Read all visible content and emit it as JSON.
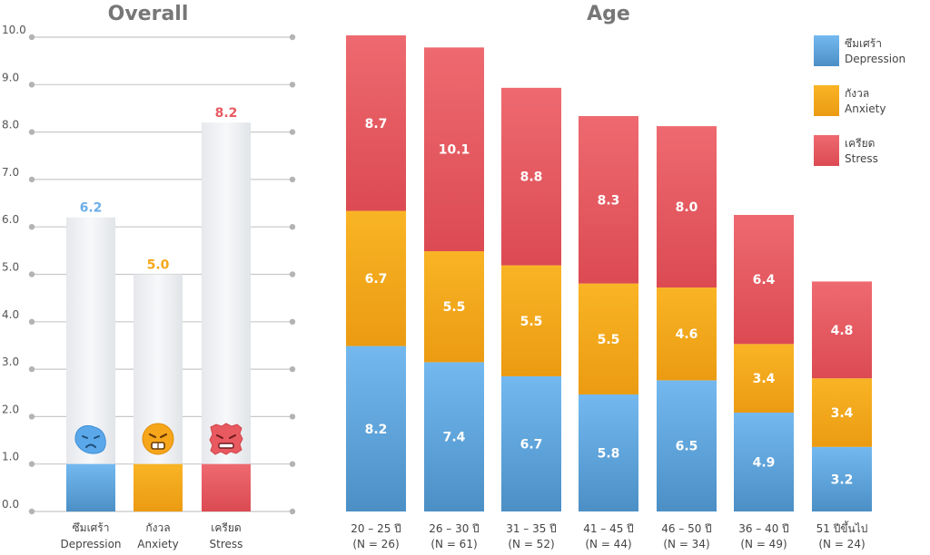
{
  "chart_data": [
    {
      "type": "bar",
      "title": "Overall",
      "ylim": [
        0,
        10
      ],
      "yticks": [
        "0.0",
        "1.0",
        "2.0",
        "3.0",
        "4.0",
        "5.0",
        "6.0",
        "7.0",
        "8.0",
        "9.0",
        "10.0"
      ],
      "categories": [
        {
          "th": "ซึมเศร้า",
          "en": "Depression"
        },
        {
          "th": "กังวล",
          "en": "Anxiety"
        },
        {
          "th": "เครียด",
          "en": "Stress"
        }
      ],
      "values": [
        6.2,
        5.0,
        8.2
      ],
      "value_labels": [
        "6.2",
        "5.0",
        "8.2"
      ],
      "icons": [
        "sad-blue-face-icon",
        "anxious-orange-face-icon",
        "stressed-red-face-icon"
      ],
      "colors": [
        "#6aaee8",
        "#f5a81c",
        "#e85a60"
      ]
    },
    {
      "type": "stacked-bar",
      "title": "Age",
      "categories": [
        {
          "range": "20 – 25 ปี",
          "n": "(N = 26)"
        },
        {
          "range": "26 – 30 ปี",
          "n": "(N = 61)"
        },
        {
          "range": "31 – 35 ปี",
          "n": "(N = 52)"
        },
        {
          "range": "41 – 45 ปี",
          "n": "(N = 44)"
        },
        {
          "range": "46 – 50 ปี",
          "n": "(N = 34)"
        },
        {
          "range": "36 – 40 ปี",
          "n": "(N = 49)"
        },
        {
          "range": "51 ปีขึ้นไป",
          "n": "(N = 24)"
        }
      ],
      "series": [
        {
          "name": "Depression",
          "name_th": "ซึมเศร้า",
          "color": "#6aaee8",
          "values": [
            8.2,
            7.4,
            6.7,
            5.8,
            6.5,
            4.9,
            3.2
          ],
          "labels": [
            "8.2",
            "7.4",
            "6.7",
            "5.8",
            "6.5",
            "4.9",
            "3.2"
          ]
        },
        {
          "name": "Anxiety",
          "name_th": "กังวล",
          "color": "#f5a81c",
          "values": [
            6.7,
            5.5,
            5.5,
            5.5,
            4.6,
            3.4,
            3.4
          ],
          "labels": [
            "6.7",
            "5.5",
            "5.5",
            "5.5",
            "4.6",
            "3.4",
            "3.4"
          ]
        },
        {
          "name": "Stress",
          "name_th": "เครียด",
          "color": "#e85a60",
          "values": [
            8.7,
            10.1,
            8.8,
            8.3,
            8.0,
            6.4,
            4.8
          ],
          "labels": [
            "8.7",
            "10.1",
            "8.8",
            "8.3",
            "8.0",
            "6.4",
            "4.8"
          ]
        }
      ],
      "legend_position": "top-right"
    }
  ]
}
